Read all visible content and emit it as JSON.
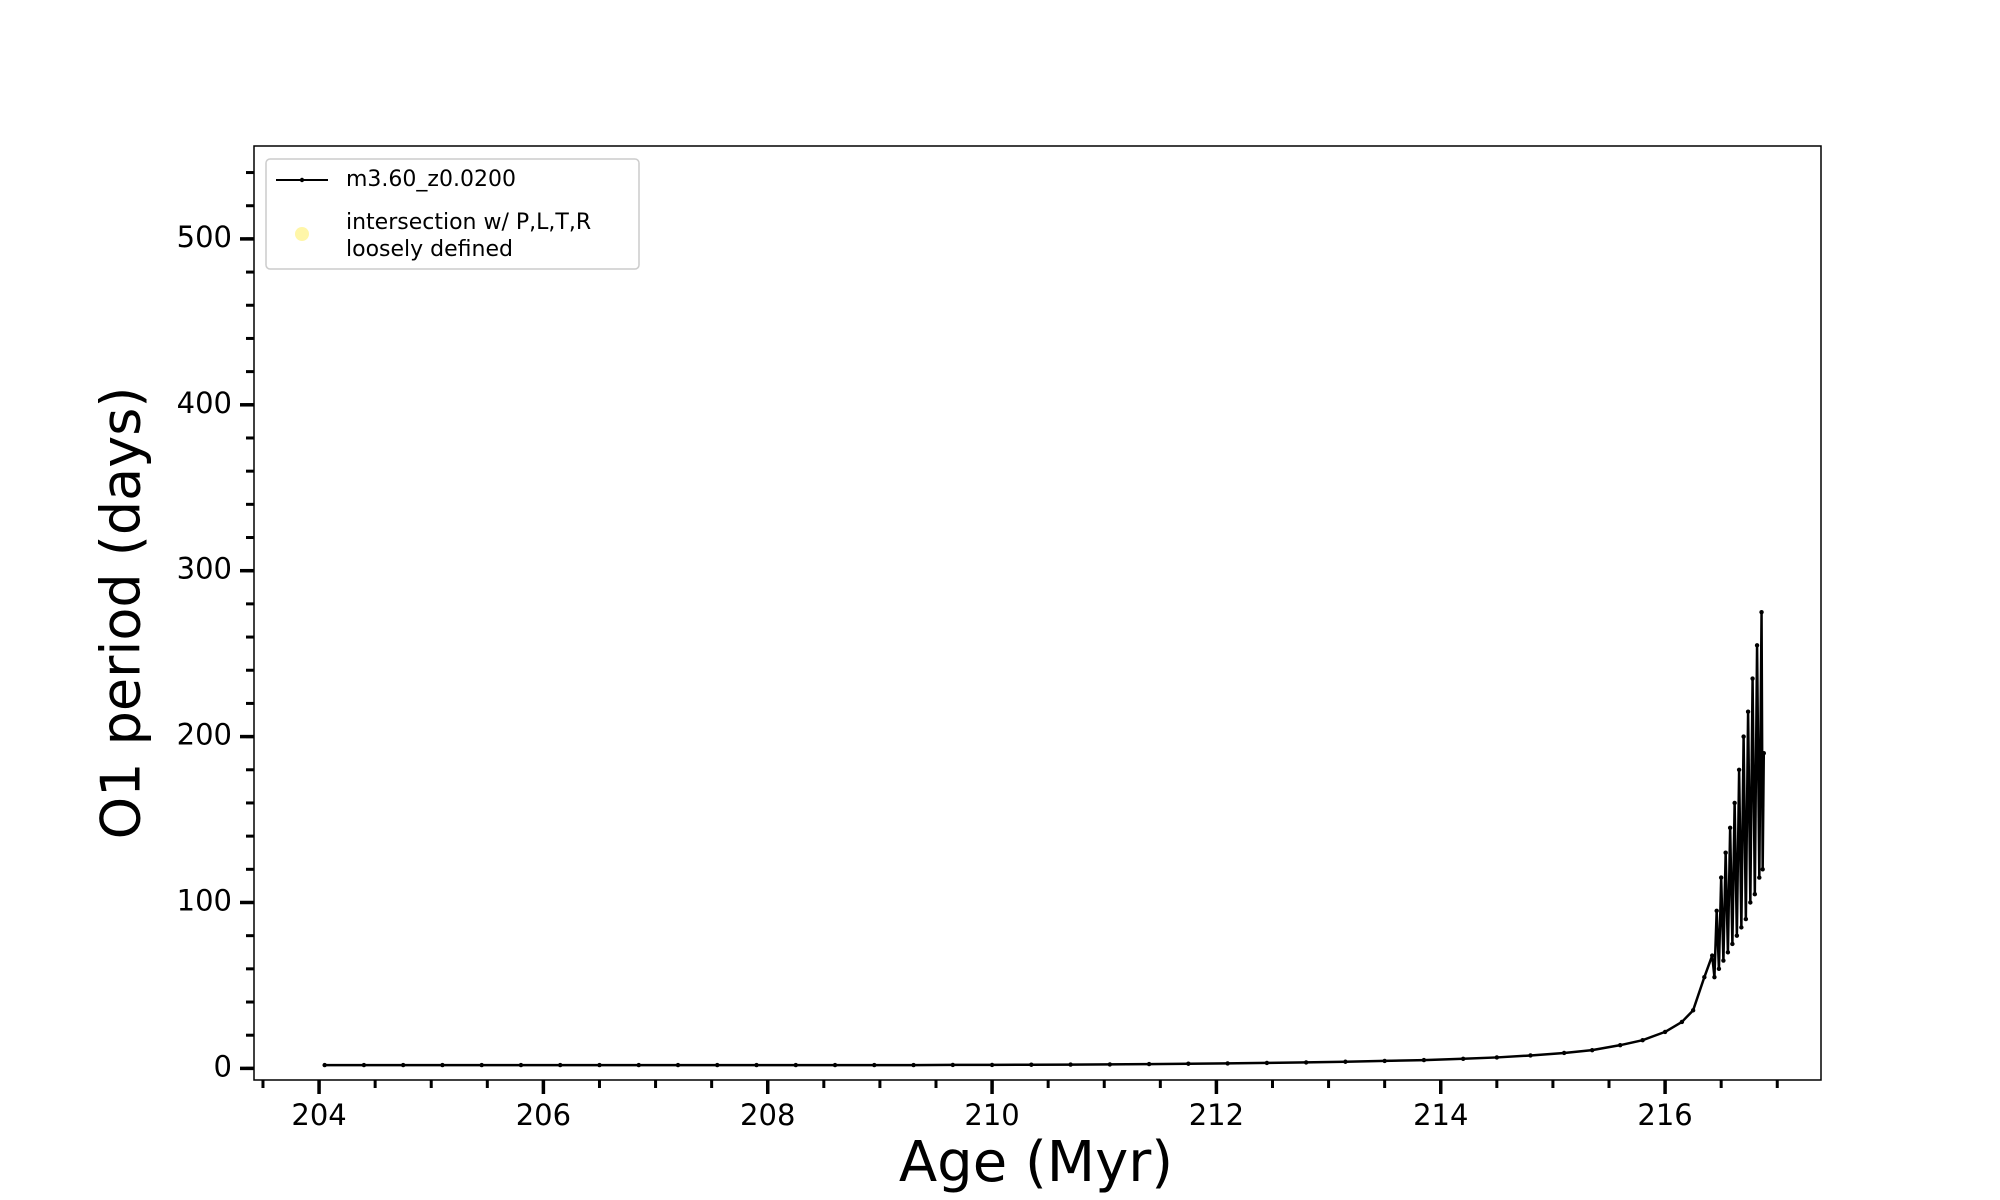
{
  "chart_data": {
    "type": "line",
    "x_label": "Age (Myr)",
    "y_label": "O1 period (days)",
    "xlim": [
      203.42,
      217.39
    ],
    "ylim": [
      -7,
      556
    ],
    "xticks": [
      204,
      206,
      208,
      210,
      212,
      214,
      216
    ],
    "yticks": [
      0,
      100,
      200,
      300,
      400,
      500
    ],
    "x_minor_step": 0.5,
    "y_minor_step": 20,
    "legend": "upper left",
    "series": [
      {
        "name": "m3.60_z0.0200",
        "color": "#000000",
        "type": "line",
        "x": [
          204.05,
          204.4,
          204.75,
          205.1,
          205.45,
          205.8,
          206.15,
          206.5,
          206.85,
          207.2,
          207.55,
          207.9,
          208.25,
          208.6,
          208.95,
          209.3,
          209.65,
          210,
          210.35,
          210.7,
          211.05,
          211.4,
          211.75,
          212.1,
          212.45,
          212.8,
          213.15,
          213.5,
          213.85,
          214.2,
          214.5,
          214.8,
          215.1,
          215.35,
          215.6,
          215.8,
          216,
          216.15,
          216.25,
          216.35,
          216.42,
          216.44,
          216.46,
          216.48,
          216.5,
          216.52,
          216.54,
          216.56,
          216.58,
          216.6,
          216.62,
          216.64,
          216.66,
          216.68,
          216.7,
          216.72,
          216.74,
          216.76,
          216.78,
          216.8,
          216.82,
          216.84,
          216.86,
          216.87,
          216.88
        ],
        "values": [
          2,
          2,
          2,
          2,
          2,
          2,
          2,
          2,
          2,
          2,
          2,
          2,
          2,
          2,
          2,
          2,
          2.1,
          2.1,
          2.2,
          2.3,
          2.4,
          2.6,
          2.8,
          3,
          3.3,
          3.6,
          4,
          4.5,
          5,
          5.8,
          6.6,
          7.8,
          9.3,
          11,
          14,
          17,
          22,
          28,
          35,
          55,
          68,
          55,
          95,
          60,
          115,
          65,
          130,
          70,
          145,
          75,
          160,
          80,
          180,
          85,
          200,
          90,
          215,
          100,
          235,
          105,
          255,
          115,
          275,
          120,
          190
        ]
      },
      {
        "name": "intersection w/ P,L,T,R\nloosely defined",
        "color": "#fff6a8",
        "type": "scatter",
        "x": [],
        "values": []
      }
    ]
  }
}
